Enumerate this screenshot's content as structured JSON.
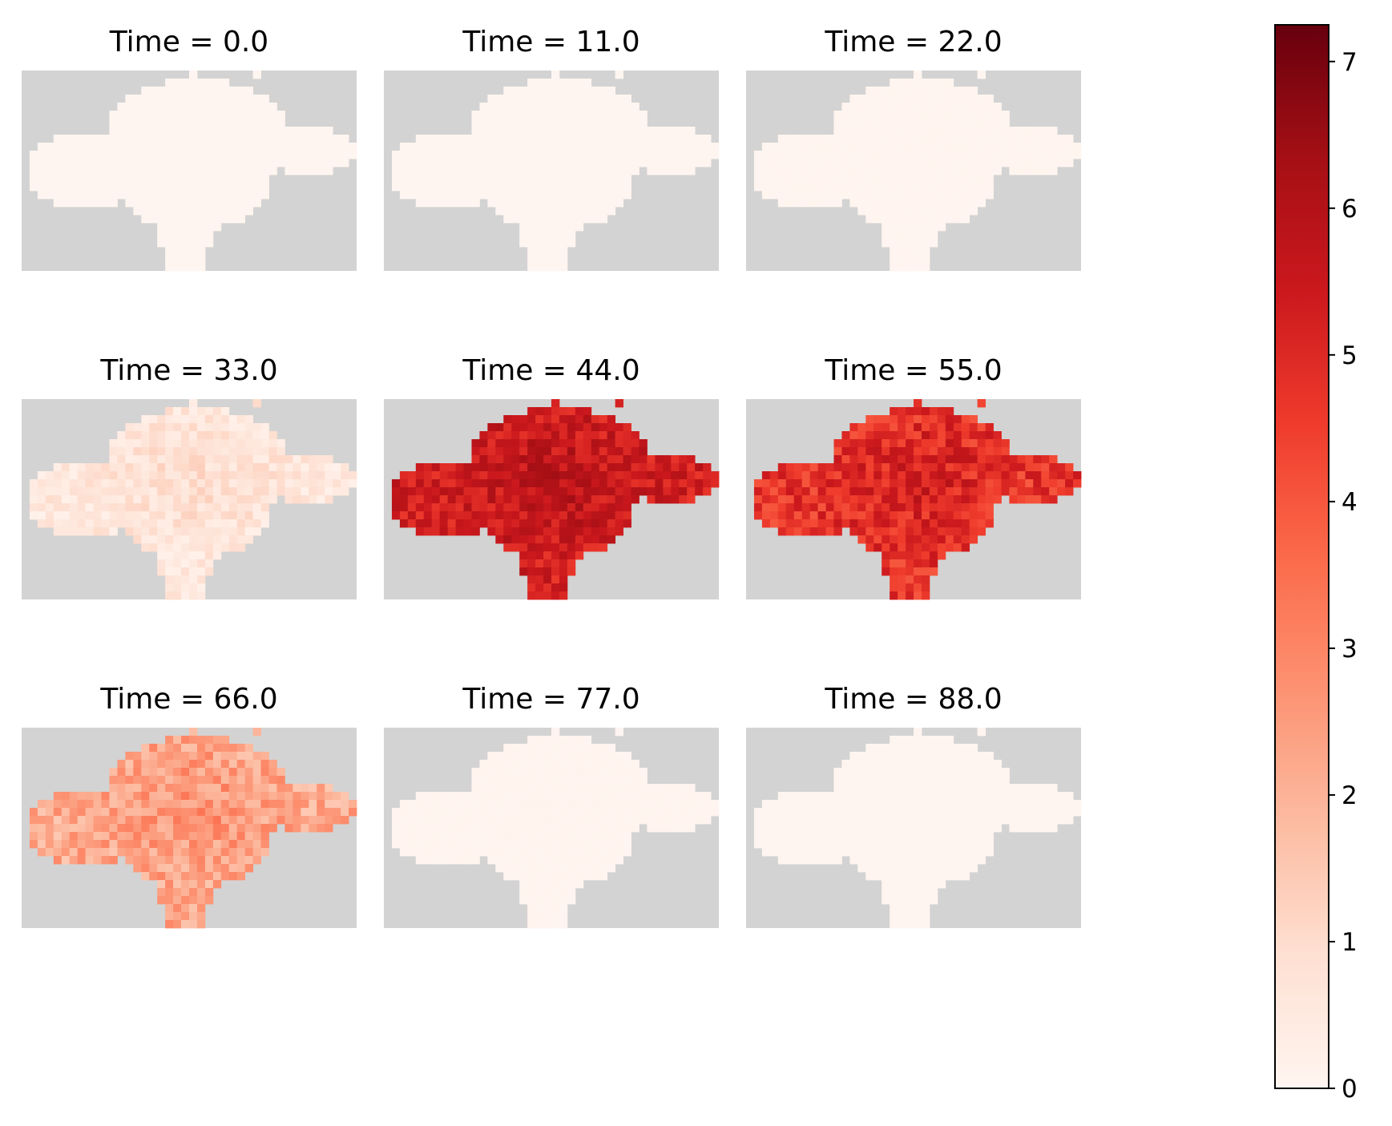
{
  "chart_data": {
    "type": "heatmap",
    "colormap": "Reds",
    "colors": {
      "masked": "#d3d3d3",
      "ramp": [
        "#fff5f0",
        "#fee0d2",
        "#fcbba1",
        "#fc9272",
        "#fb6a4a",
        "#ef3b2c",
        "#cb181d",
        "#a50f15",
        "#67000d"
      ]
    },
    "panels": [
      {
        "title": "Time = 0.0",
        "mean": 0.0,
        "spread": 0.0
      },
      {
        "title": "Time = 11.0",
        "mean": 0.0,
        "spread": 0.0
      },
      {
        "title": "Time = 22.0",
        "mean": 0.02,
        "spread": 0.02
      },
      {
        "title": "Time = 33.0",
        "mean": 0.6,
        "spread": 0.45
      },
      {
        "title": "Time = 44.0",
        "mean": 5.3,
        "spread": 0.7
      },
      {
        "title": "Time = 55.0",
        "mean": 4.7,
        "spread": 0.8
      },
      {
        "title": "Time = 66.0",
        "mean": 2.2,
        "spread": 0.75
      },
      {
        "title": "Time = 77.0",
        "mean": 0.03,
        "spread": 0.03
      },
      {
        "title": "Time = 88.0",
        "mean": 0.0,
        "spread": 0.0
      }
    ],
    "colorbar": {
      "range": [
        0,
        7.25
      ],
      "ticks": [
        0,
        1,
        2,
        3,
        4,
        5,
        6,
        7
      ],
      "tick_labels": [
        "0",
        "1",
        "2",
        "3",
        "4",
        "5",
        "6",
        "7"
      ]
    }
  }
}
